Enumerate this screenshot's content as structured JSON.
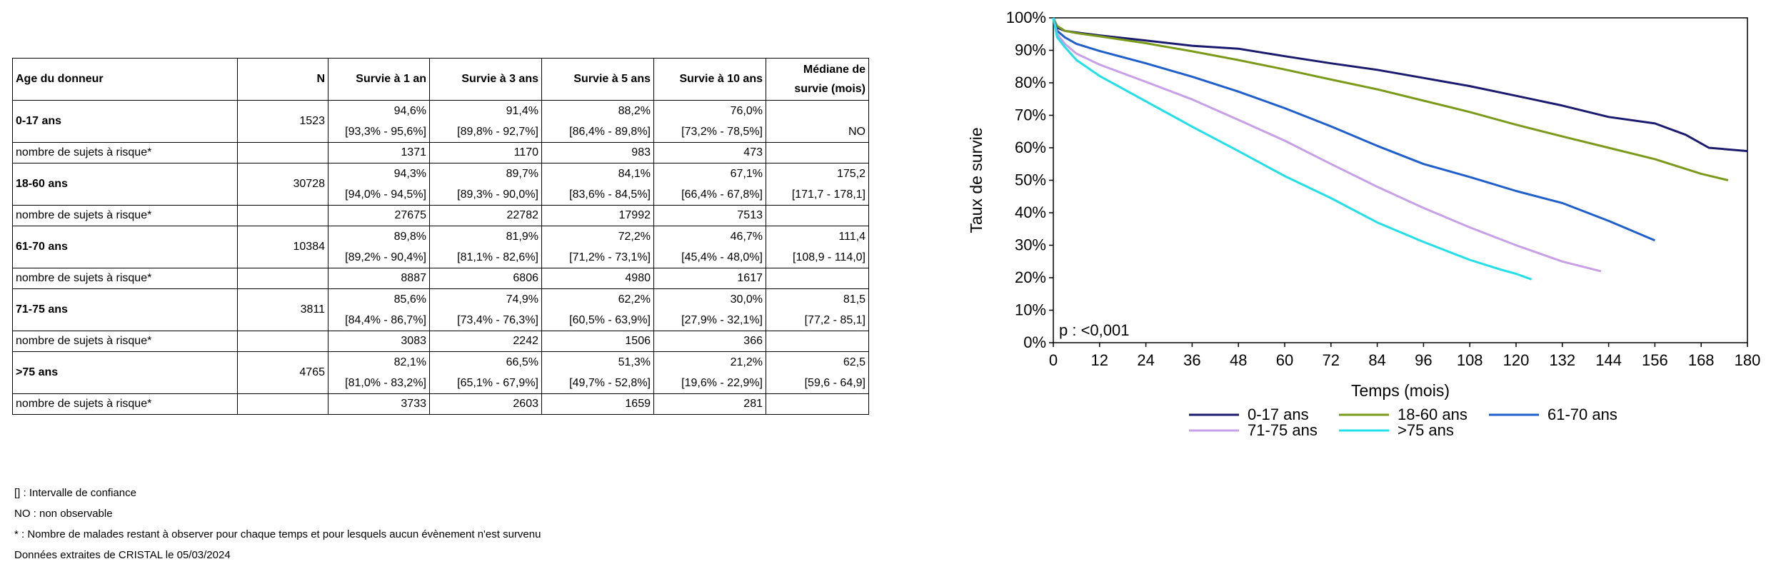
{
  "table": {
    "headers": [
      "Age du donneur",
      "N",
      "Survie à 1 an",
      "Survie à 3 ans",
      "Survie à 5 ans",
      "Survie à 10 ans",
      "Médiane de",
      "survie (mois)"
    ],
    "risk_label": "nombre de sujets à risque*",
    "groups": [
      {
        "age": "0-17 ans",
        "n": "1523",
        "surv": [
          [
            "94,6%",
            "[93,3% - 95,6%]"
          ],
          [
            "91,4%",
            "[89,8% - 92,7%]"
          ],
          [
            "88,2%",
            "[86,4% - 89,8%]"
          ],
          [
            "76,0%",
            "[73,2% - 78,5%]"
          ]
        ],
        "median": [
          "",
          "NO"
        ],
        "risk": [
          "1371",
          "1170",
          "983",
          "473"
        ]
      },
      {
        "age": "18-60 ans",
        "n": "30728",
        "surv": [
          [
            "94,3%",
            "[94,0% - 94,5%]"
          ],
          [
            "89,7%",
            "[89,3% - 90,0%]"
          ],
          [
            "84,1%",
            "[83,6% - 84,5%]"
          ],
          [
            "67,1%",
            "[66,4% - 67,8%]"
          ]
        ],
        "median": [
          "175,2",
          "[171,7 - 178,1]"
        ],
        "risk": [
          "27675",
          "22782",
          "17992",
          "7513"
        ]
      },
      {
        "age": "61-70 ans",
        "n": "10384",
        "surv": [
          [
            "89,8%",
            "[89,2% - 90,4%]"
          ],
          [
            "81,9%",
            "[81,1% - 82,6%]"
          ],
          [
            "72,2%",
            "[71,2% - 73,1%]"
          ],
          [
            "46,7%",
            "[45,4% - 48,0%]"
          ]
        ],
        "median": [
          "111,4",
          "[108,9 - 114,0]"
        ],
        "risk": [
          "8887",
          "6806",
          "4980",
          "1617"
        ]
      },
      {
        "age": "71-75 ans",
        "n": "3811",
        "surv": [
          [
            "85,6%",
            "[84,4% - 86,7%]"
          ],
          [
            "74,9%",
            "[73,4% - 76,3%]"
          ],
          [
            "62,2%",
            "[60,5% - 63,9%]"
          ],
          [
            "30,0%",
            "[27,9% - 32,1%]"
          ]
        ],
        "median": [
          "81,5",
          "[77,2 - 85,1]"
        ],
        "risk": [
          "3083",
          "2242",
          "1506",
          "366"
        ]
      },
      {
        "age": ">75 ans",
        "n": "4765",
        "surv": [
          [
            "82,1%",
            "[81,0% - 83,2%]"
          ],
          [
            "66,5%",
            "[65,1% - 67,9%]"
          ],
          [
            "51,3%",
            "[49,7% - 52,8%]"
          ],
          [
            "21,2%",
            "[19,6% - 22,9%]"
          ]
        ],
        "median": [
          "62,5",
          "[59,6 - 64,9]"
        ],
        "risk": [
          "3733",
          "2603",
          "1659",
          "281"
        ]
      }
    ]
  },
  "footnotes": [
    "[] : Intervalle de confiance",
    "NO : non observable",
    "* : Nombre de malades restant à observer pour chaque temps et pour lesquels aucun évènement n'est survenu",
    "Données extraites de CRISTAL le 05/03/2024"
  ],
  "chart_data": {
    "type": "line",
    "xlabel": "Temps (mois)",
    "ylabel": "Taux de survie",
    "xlim": [
      0,
      180
    ],
    "ylim": [
      0,
      100
    ],
    "xticks": [
      0,
      12,
      24,
      36,
      48,
      60,
      72,
      84,
      96,
      108,
      120,
      132,
      144,
      156,
      168,
      180
    ],
    "yticks": [
      0,
      10,
      20,
      30,
      40,
      50,
      60,
      70,
      80,
      90,
      100
    ],
    "ytick_suffix": "%",
    "annotation": "p : <0,001",
    "legend_position": "bottom",
    "grid": false,
    "series": [
      {
        "name": "0-17 ans",
        "color": "#1a1a6e",
        "points": [
          [
            0,
            100
          ],
          [
            1,
            97
          ],
          [
            3,
            96
          ],
          [
            6,
            95.5
          ],
          [
            12,
            94.6
          ],
          [
            24,
            93
          ],
          [
            36,
            91.4
          ],
          [
            48,
            90.5
          ],
          [
            60,
            88.2
          ],
          [
            72,
            86
          ],
          [
            84,
            84
          ],
          [
            96,
            81.5
          ],
          [
            108,
            79
          ],
          [
            120,
            76
          ],
          [
            132,
            73
          ],
          [
            144,
            69.5
          ],
          [
            156,
            67.5
          ],
          [
            164,
            64
          ],
          [
            170,
            60
          ],
          [
            180,
            59
          ]
        ]
      },
      {
        "name": "18-60 ans",
        "color": "#7a9a1a",
        "points": [
          [
            0,
            100
          ],
          [
            1,
            97.5
          ],
          [
            3,
            96
          ],
          [
            6,
            95.3
          ],
          [
            12,
            94.3
          ],
          [
            24,
            92.2
          ],
          [
            36,
            89.7
          ],
          [
            48,
            87
          ],
          [
            60,
            84.1
          ],
          [
            72,
            81
          ],
          [
            84,
            78
          ],
          [
            96,
            74.5
          ],
          [
            108,
            71
          ],
          [
            120,
            67.1
          ],
          [
            132,
            63.5
          ],
          [
            144,
            60
          ],
          [
            156,
            56.5
          ],
          [
            168,
            52
          ],
          [
            175,
            50
          ]
        ]
      },
      {
        "name": "61-70 ans",
        "color": "#1f5fcc",
        "points": [
          [
            0,
            100
          ],
          [
            1,
            96
          ],
          [
            3,
            94
          ],
          [
            6,
            92
          ],
          [
            12,
            89.8
          ],
          [
            24,
            86
          ],
          [
            36,
            81.9
          ],
          [
            48,
            77.3
          ],
          [
            60,
            72.2
          ],
          [
            72,
            66.6
          ],
          [
            84,
            60.6
          ],
          [
            96,
            55
          ],
          [
            108,
            51
          ],
          [
            120,
            46.7
          ],
          [
            132,
            43
          ],
          [
            144,
            37.5
          ],
          [
            156,
            31.5
          ]
        ]
      },
      {
        "name": "71-75 ans",
        "color": "#c7a0e8",
        "points": [
          [
            0,
            100
          ],
          [
            1,
            95
          ],
          [
            3,
            92
          ],
          [
            6,
            89
          ],
          [
            12,
            85.6
          ],
          [
            24,
            80.3
          ],
          [
            36,
            74.9
          ],
          [
            48,
            68.6
          ],
          [
            60,
            62.2
          ],
          [
            72,
            55
          ],
          [
            84,
            48
          ],
          [
            96,
            41.5
          ],
          [
            108,
            35.5
          ],
          [
            120,
            30
          ],
          [
            132,
            25
          ],
          [
            142,
            22
          ]
        ]
      },
      {
        "name": ">75 ans",
        "color": "#22e0e8",
        "points": [
          [
            0,
            100
          ],
          [
            1,
            94
          ],
          [
            3,
            91
          ],
          [
            6,
            87
          ],
          [
            12,
            82.1
          ],
          [
            24,
            74.3
          ],
          [
            36,
            66.5
          ],
          [
            48,
            59
          ],
          [
            60,
            51.3
          ],
          [
            72,
            44.5
          ],
          [
            84,
            37
          ],
          [
            96,
            31
          ],
          [
            108,
            25.5
          ],
          [
            116,
            22.5
          ],
          [
            120,
            21.2
          ],
          [
            124,
            19.5
          ]
        ]
      }
    ]
  }
}
